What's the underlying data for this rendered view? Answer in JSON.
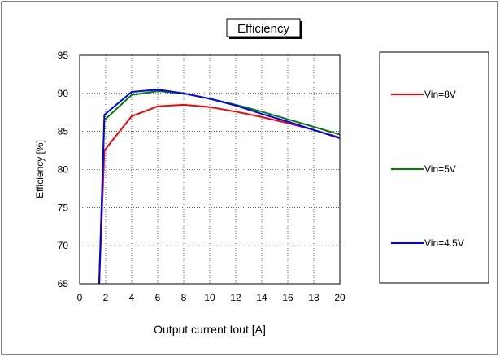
{
  "chart_data": {
    "type": "line",
    "title": "Efficiency",
    "xlabel": "Output current Iout [A]",
    "ylabel": "Efficiency [%]",
    "xlim": [
      0,
      20
    ],
    "ylim": [
      65,
      95
    ],
    "x_ticks": [
      0,
      2,
      4,
      6,
      8,
      10,
      12,
      14,
      16,
      18,
      20
    ],
    "y_ticks": [
      65,
      70,
      75,
      80,
      85,
      90,
      95
    ],
    "grid": true,
    "legend_position": "right",
    "series": [
      {
        "name": "Vin=8V",
        "color": "#ff0000",
        "x": [
          1.5,
          1.9,
          4,
          6,
          8,
          10,
          12,
          14,
          16,
          18,
          20
        ],
        "y": [
          65,
          82.5,
          87.0,
          88.3,
          88.5,
          88.2,
          87.6,
          86.9,
          86.1,
          85.2,
          84.2
        ]
      },
      {
        "name": "Vin=5V",
        "color": "#008000",
        "x": [
          1.5,
          1.9,
          4,
          6,
          8,
          10,
          12,
          14,
          16,
          18,
          20
        ],
        "y": [
          65,
          86.5,
          89.8,
          90.3,
          90.0,
          89.3,
          88.5,
          87.6,
          86.6,
          85.6,
          84.6
        ]
      },
      {
        "name": "Vin=4.5V",
        "color": "#0000ff",
        "x": [
          1.5,
          1.9,
          4,
          6,
          8,
          10,
          12,
          14,
          16,
          18,
          20
        ],
        "y": [
          65,
          87.2,
          90.2,
          90.5,
          90.0,
          89.3,
          88.4,
          87.3,
          86.3,
          85.2,
          84.1
        ]
      }
    ]
  }
}
